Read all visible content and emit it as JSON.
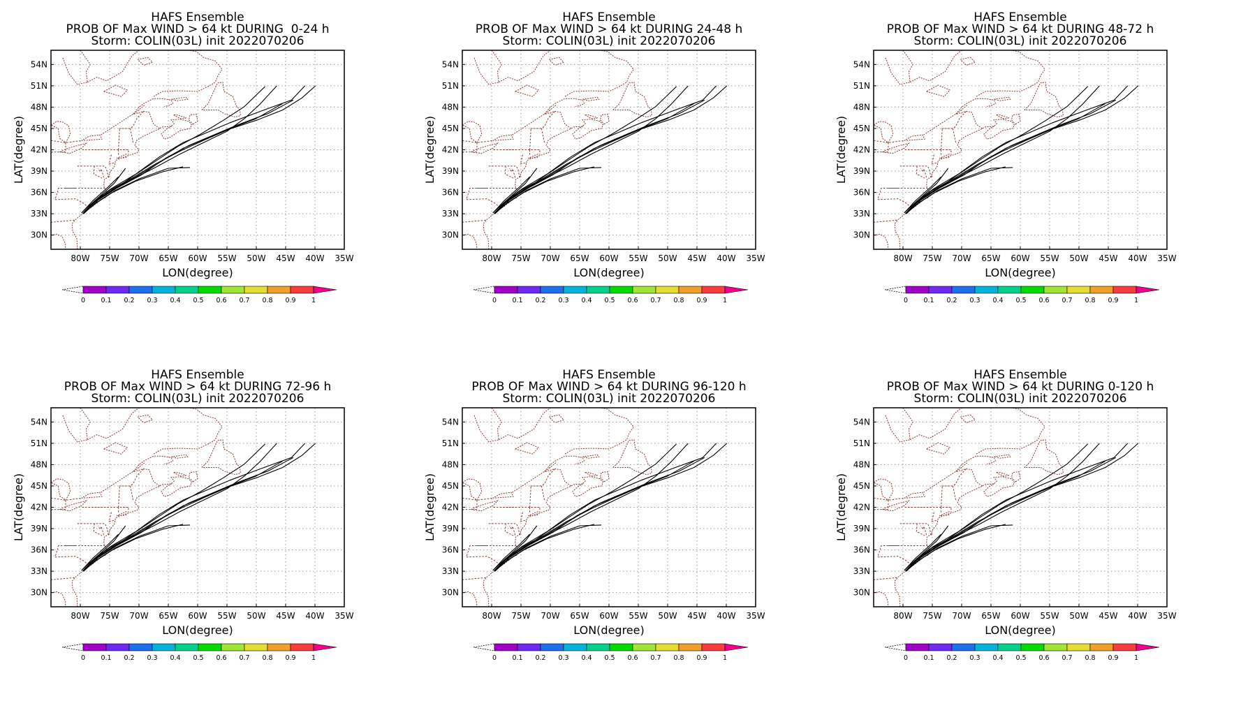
{
  "figure": {
    "panels": [
      {
        "title": "HAFS Ensemble",
        "subtitle": "PROB OF Max WIND > 64 kt DURING  0-24 h",
        "storm_line": "Storm: COLIN(03L) init 2022070206"
      },
      {
        "title": "HAFS Ensemble",
        "subtitle": "PROB OF Max WIND > 64 kt DURING 24-48 h",
        "storm_line": "Storm: COLIN(03L) init 2022070206"
      },
      {
        "title": "HAFS Ensemble",
        "subtitle": "PROB OF Max WIND > 64 kt DURING 48-72 h",
        "storm_line": "Storm: COLIN(03L) init 2022070206"
      },
      {
        "title": "HAFS Ensemble",
        "subtitle": "PROB OF Max WIND > 64 kt DURING 72-96 h",
        "storm_line": "Storm: COLIN(03L) init 2022070206"
      },
      {
        "title": "HAFS Ensemble",
        "subtitle": "PROB OF Max WIND > 64 kt DURING 96-120 h",
        "storm_line": "Storm: COLIN(03L) init 2022070206"
      },
      {
        "title": "HAFS Ensemble",
        "subtitle": "PROB OF Max WIND > 64 kt DURING 0-120 h",
        "storm_line": "Storm: COLIN(03L) init 2022070206"
      }
    ],
    "axes": {
      "xlabel": "LON(degree)",
      "ylabel": "LAT(degree)",
      "lon_range": [
        -85,
        -35
      ],
      "lat_range": [
        28,
        56
      ],
      "lon_ticks": [
        -80,
        -75,
        -70,
        -65,
        -60,
        -55,
        -50,
        -45,
        -40,
        -35
      ],
      "lon_tick_labels": [
        "80W",
        "75W",
        "70W",
        "65W",
        "60W",
        "55W",
        "50W",
        "45W",
        "40W",
        "35W"
      ],
      "lat_ticks": [
        30,
        33,
        36,
        39,
        42,
        45,
        48,
        51,
        54
      ],
      "lat_tick_labels": [
        "30N",
        "33N",
        "36N",
        "39N",
        "42N",
        "45N",
        "48N",
        "51N",
        "54N"
      ],
      "grid": "dotted",
      "coastline_color": "#8b3a2e"
    },
    "colorbar": {
      "labels": [
        "0",
        "0.1",
        "0.2",
        "0.3",
        "0.4",
        "0.5",
        "0.6",
        "0.7",
        "0.8",
        "0.9",
        "1"
      ],
      "colors": [
        "#a000c8",
        "#6e28f0",
        "#1e6ef0",
        "#00b4dc",
        "#00d28c",
        "#00dc00",
        "#a0e632",
        "#e6dc32",
        "#f0a028",
        "#fa3c3c",
        "#f0008c"
      ]
    }
  },
  "chart_data": [
    {
      "type": "line",
      "description_of_series": "ensemble member storm tracks (lon, lat)",
      "tracks": [
        [
          [
            -79.5,
            33.1
          ],
          [
            -77.8,
            34.5
          ],
          [
            -75,
            36.1
          ],
          [
            -71,
            37.9
          ],
          [
            -67,
            39.6
          ],
          [
            -63,
            41.4
          ],
          [
            -59,
            43
          ],
          [
            -55,
            44.6
          ],
          [
            -52,
            46.4
          ],
          [
            -49.4,
            48.4
          ],
          [
            -46.5,
            51
          ]
        ],
        [
          [
            -79.6,
            33
          ],
          [
            -77.5,
            34.7
          ],
          [
            -74.5,
            36.4
          ],
          [
            -70.5,
            38.2
          ],
          [
            -66.5,
            40.2
          ],
          [
            -62.5,
            42.2
          ],
          [
            -58.5,
            43.6
          ],
          [
            -55,
            44.8
          ],
          [
            -50,
            46.4
          ],
          [
            -45.5,
            48.5
          ]
        ],
        [
          [
            -79.3,
            33.1
          ],
          [
            -77,
            34.9
          ],
          [
            -73.8,
            36.6
          ],
          [
            -69.5,
            38.5
          ],
          [
            -65.5,
            40.8
          ],
          [
            -61.5,
            42.6
          ],
          [
            -57.5,
            44
          ],
          [
            -53.5,
            45.4
          ],
          [
            -48,
            47.1
          ],
          [
            -43.7,
            49
          ]
        ],
        [
          [
            -79.7,
            33.2
          ],
          [
            -77.6,
            34.8
          ],
          [
            -74.8,
            36.5
          ],
          [
            -70.5,
            38.6
          ],
          [
            -66.5,
            41
          ],
          [
            -62.5,
            43
          ],
          [
            -58.5,
            44.4
          ],
          [
            -54.5,
            45.8
          ],
          [
            -49,
            47.5
          ],
          [
            -44,
            49
          ],
          [
            -41.7,
            51
          ]
        ],
        [
          [
            -79.5,
            33
          ],
          [
            -77.2,
            34.6
          ],
          [
            -74,
            36.3
          ],
          [
            -70,
            37.9
          ],
          [
            -65,
            39.4
          ],
          [
            -61.3,
            39.5
          ]
        ],
        [
          [
            -79.4,
            33.2
          ],
          [
            -77.3,
            35
          ],
          [
            -74.2,
            37.3
          ],
          [
            -72.3,
            39.4
          ]
        ],
        [
          [
            -79.2,
            33.2
          ],
          [
            -77.3,
            34.9
          ],
          [
            -74.6,
            36.2
          ],
          [
            -71,
            38.3
          ],
          [
            -67,
            40.5
          ],
          [
            -63.5,
            42.4
          ],
          [
            -59.5,
            44.2
          ],
          [
            -55.5,
            46.2
          ],
          [
            -52,
            48.1
          ],
          [
            -48.5,
            50.9
          ]
        ],
        [
          [
            -79.8,
            33.1
          ],
          [
            -77.9,
            34.8
          ],
          [
            -75.2,
            36.8
          ],
          [
            -73.5,
            38.2
          ]
        ],
        [
          [
            -79.5,
            33.1
          ],
          [
            -77.5,
            34.4
          ],
          [
            -74.5,
            36
          ],
          [
            -70.5,
            37.6
          ],
          [
            -66,
            38.9
          ],
          [
            -62.5,
            39.6
          ]
        ],
        [
          [
            -79.4,
            33
          ],
          [
            -77.6,
            34.7
          ],
          [
            -75,
            36.3
          ],
          [
            -71.2,
            38
          ],
          [
            -67.2,
            40
          ],
          [
            -63,
            41.8
          ],
          [
            -58.8,
            43.4
          ],
          [
            -54.6,
            44.9
          ],
          [
            -49.8,
            46.2
          ],
          [
            -45.5,
            47.6
          ],
          [
            -42.2,
            49.3
          ],
          [
            -39.9,
            51
          ]
        ]
      ]
    }
  ]
}
